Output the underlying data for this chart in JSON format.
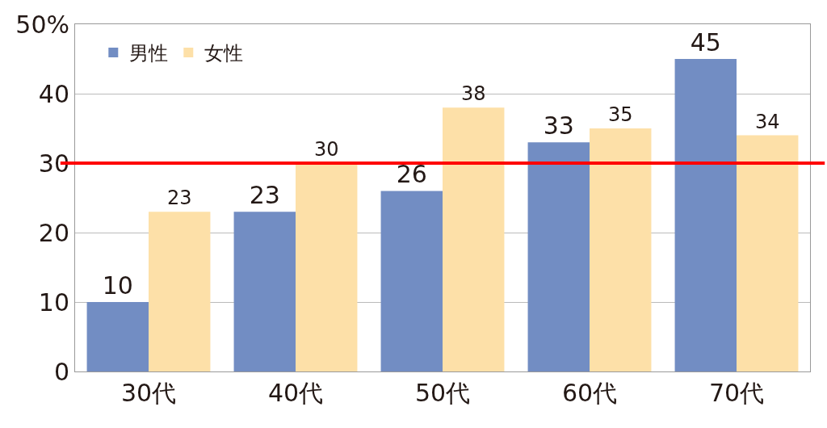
{
  "chart_data": {
    "type": "bar",
    "categories": [
      "30代",
      "40代",
      "50代",
      "60代",
      "70代"
    ],
    "series": [
      {
        "name": "男性",
        "color": "#728dc3",
        "values": [
          10,
          23,
          26,
          33,
          45
        ]
      },
      {
        "name": "女性",
        "color": "#fde0a8",
        "values": [
          23,
          30,
          38,
          35,
          34
        ]
      }
    ],
    "ylim": [
      0,
      50
    ],
    "yticks": [
      0,
      10,
      20,
      30,
      40,
      {
        "value": 50,
        "label": "50%"
      }
    ],
    "grid": "y",
    "legend": "top left",
    "data_labels": true,
    "ref_lines": [
      {
        "axis": "y",
        "value": 30,
        "color": "#ff0000"
      }
    ]
  }
}
